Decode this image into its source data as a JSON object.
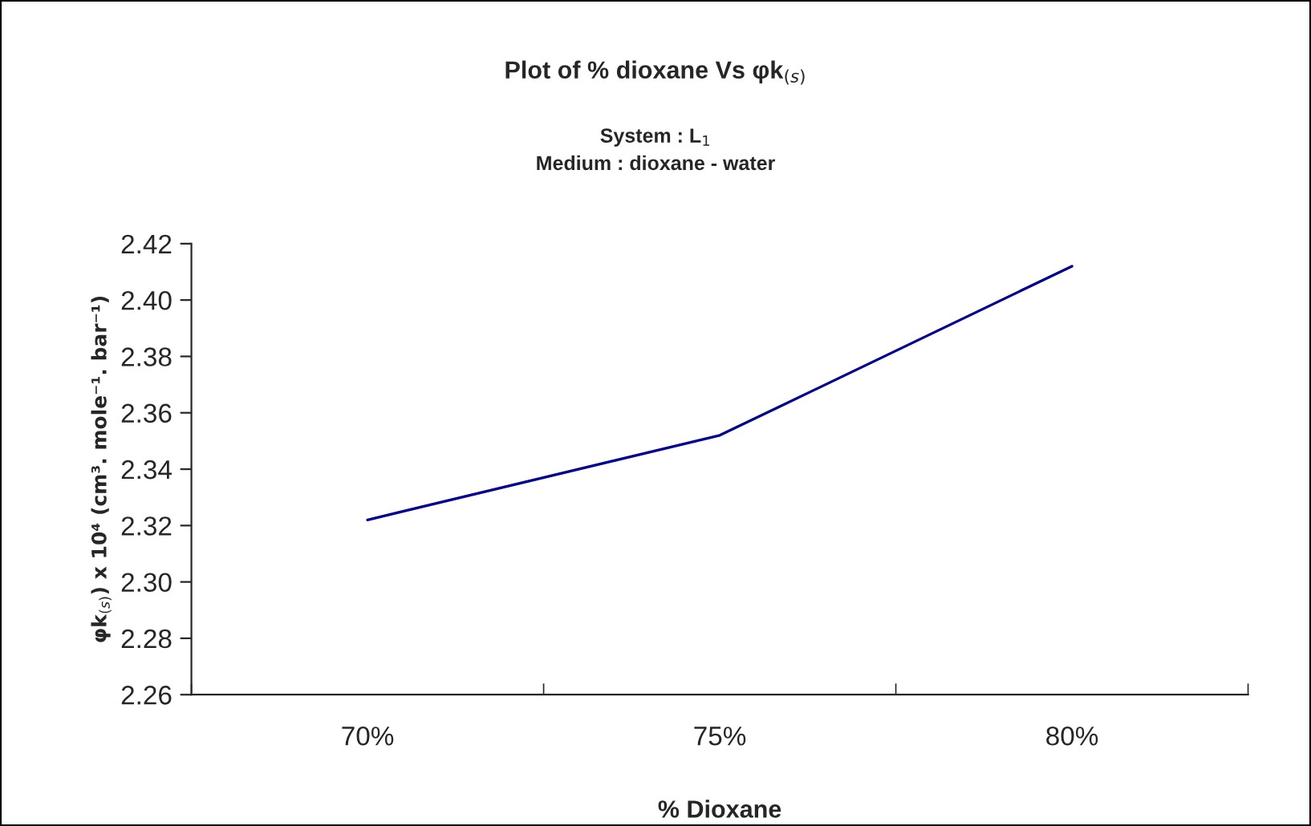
{
  "chart_data": {
    "type": "line",
    "title": "Plot of % dioxane Vs φk$_{(s)}$",
    "subtitle": "System : L$_{1}$\nMedium : dioxane - water",
    "xlabel": "% Dioxane",
    "ylabel": "φk$_{(s)}$) x 10⁴ (cm³. mole⁻¹. bar⁻¹)",
    "categories": [
      "70%",
      "75%",
      "80%"
    ],
    "series": [
      {
        "color": "#000080",
        "values": [
          2.322,
          2.352,
          2.412
        ]
      }
    ],
    "ylim": [
      2.26,
      2.42
    ],
    "yticks": [
      {
        "value": 2.26,
        "label": "2.26"
      },
      {
        "value": 2.28,
        "label": "2.28"
      },
      {
        "value": 2.3,
        "label": "2.30"
      },
      {
        "value": 2.32,
        "label": "2.32"
      },
      {
        "value": 2.34,
        "label": "2.34"
      },
      {
        "value": 2.36,
        "label": "2.36"
      },
      {
        "value": 2.38,
        "label": "2.38"
      },
      {
        "value": 2.4,
        "label": "2.40"
      },
      {
        "value": 2.42,
        "label": "2.42"
      }
    ],
    "grid": false,
    "legend": false,
    "marker": "none",
    "line_style": "solid"
  }
}
